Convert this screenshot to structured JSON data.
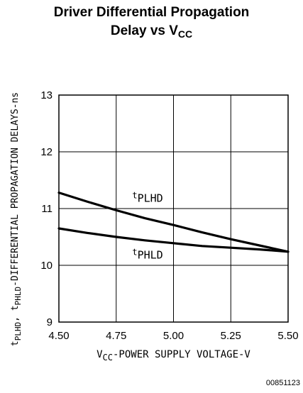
{
  "title_line1": "Driver Differential Propagation",
  "title_line2_main": "Delay vs V",
  "title_line2_sub": "CC",
  "figure_id": "00851123",
  "chart_data": {
    "type": "line",
    "xlabel": {
      "pre": "V",
      "sub": "CC",
      "post": "-POWER SUPPLY VOLTAGE-V"
    },
    "ylabel": {
      "a": "t",
      "a_sub": "PLHD",
      "b": ", t",
      "b_sub": "PHLD",
      "c": "-DIFFERENTIAL PROPAGATION DELAYS-ns"
    },
    "xlim": [
      4.5,
      5.5
    ],
    "ylim": [
      9,
      13
    ],
    "xticks": [
      4.5,
      4.75,
      5.0,
      5.25,
      5.5
    ],
    "xtick_labels": [
      "4.50",
      "4.75",
      "5.00",
      "5.25",
      "5.50"
    ],
    "yticks": [
      9,
      10,
      11,
      12,
      13
    ],
    "ytick_labels": [
      "9",
      "10",
      "11",
      "12",
      "13"
    ],
    "grid": true,
    "series": [
      {
        "name": "tPLHD",
        "label_main": "t",
        "label_sub": "PLHD",
        "x": [
          4.5,
          4.625,
          4.75,
          4.875,
          5.0,
          5.125,
          5.25,
          5.375,
          5.5
        ],
        "y": [
          11.28,
          11.12,
          10.97,
          10.83,
          10.71,
          10.58,
          10.46,
          10.35,
          10.24
        ],
        "label_at": [
          4.82,
          11.12
        ]
      },
      {
        "name": "tPHLD",
        "label_main": "t",
        "label_sub": "PHLD",
        "x": [
          4.5,
          4.625,
          4.75,
          4.875,
          5.0,
          5.125,
          5.25,
          5.375,
          5.5
        ],
        "y": [
          10.65,
          10.57,
          10.5,
          10.44,
          10.39,
          10.34,
          10.31,
          10.28,
          10.24
        ],
        "label_at": [
          4.82,
          10.12
        ]
      }
    ]
  }
}
